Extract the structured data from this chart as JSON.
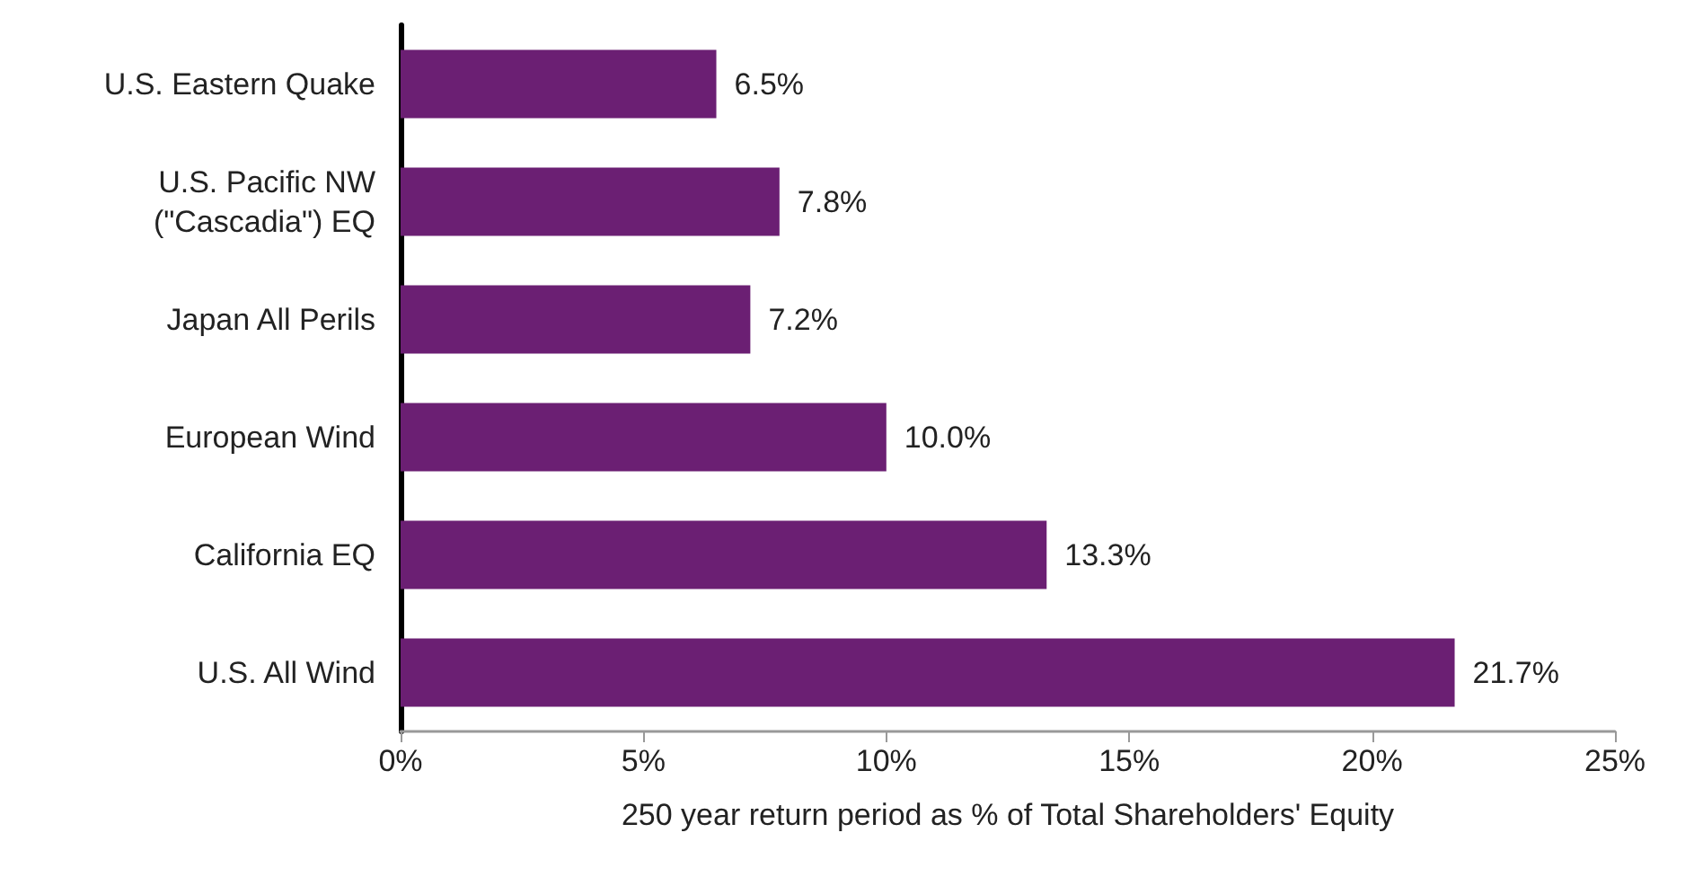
{
  "chart_data": {
    "type": "bar",
    "orientation": "horizontal",
    "xlabel": "250 year return period as % of Total Shareholders' Equity",
    "categories": [
      "U.S. Eastern Quake",
      "U.S. Pacific NW\n(\"Cascadia\") EQ",
      "Japan All Perils",
      "European Wind",
      "California EQ",
      "U.S. All Wind"
    ],
    "values": [
      6.5,
      7.8,
      7.2,
      10.0,
      13.3,
      21.7
    ],
    "value_labels": [
      "6.5%",
      "7.8%",
      "7.2%",
      "10.0%",
      "13.3%",
      "21.7%"
    ],
    "color": "#6b1f73",
    "xlim": [
      0,
      25
    ],
    "xticks": [
      {
        "value": 0,
        "label": "0%"
      },
      {
        "value": 5,
        "label": "5%"
      },
      {
        "value": 10,
        "label": "10%"
      },
      {
        "value": 15,
        "label": "15%"
      },
      {
        "value": 20,
        "label": "20%"
      },
      {
        "value": 25,
        "label": "25%"
      }
    ],
    "grid": false
  }
}
